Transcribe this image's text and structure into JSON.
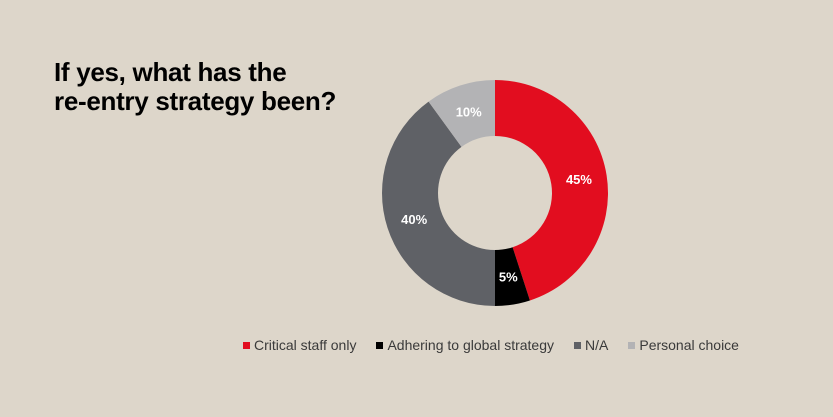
{
  "chart_data": {
    "type": "pie",
    "title_lines": [
      "If yes, what has the",
      "re-entry strategy been?"
    ],
    "categories": [
      "Critical staff only",
      "Adhering to global strategy",
      "N/A",
      "Personal choice"
    ],
    "values": [
      45,
      5,
      40,
      10
    ],
    "value_labels": [
      "45%",
      "5%",
      "40%",
      "10%"
    ],
    "colors": [
      "#e20d1f",
      "#000000",
      "#5f6166",
      "#b3b3b5"
    ],
    "label_colors": [
      "#ffffff",
      "#ffffff",
      "#ffffff",
      "#ffffff"
    ],
    "donut": true,
    "legend_position": "bottom"
  }
}
